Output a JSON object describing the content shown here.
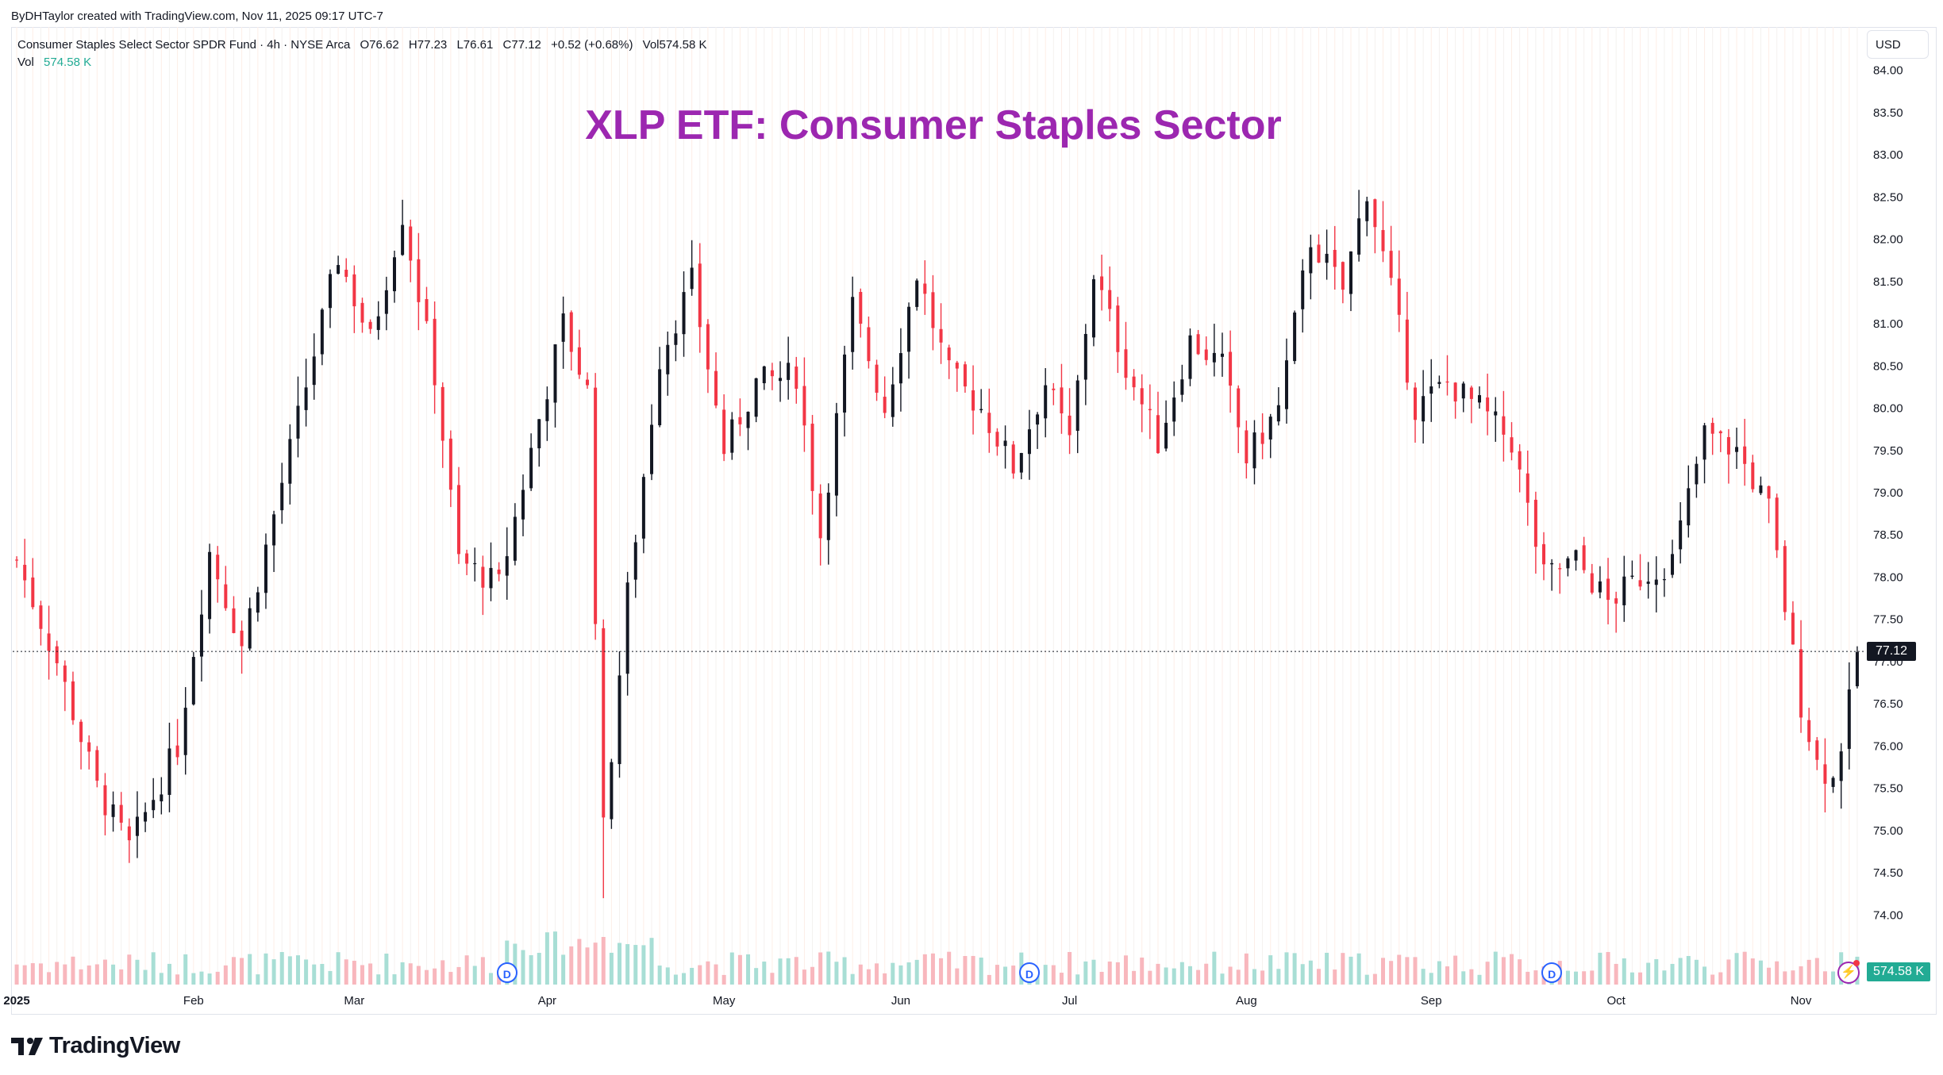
{
  "header": {
    "attribution": "ByDHTaylor created with TradingView.com, Nov 11, 2025 09:17 UTC-7"
  },
  "legend": {
    "symbol": "Consumer Staples Select Sector SPDR Fund · 4h · NYSE Arca",
    "open": "O76.62",
    "high": "H77.23",
    "low": "L76.61",
    "close": "C77.12",
    "change": "+0.52 (+0.68%)",
    "vol_label": "Vol574.58 K",
    "vol2_label": "Vol",
    "vol2_value": "574.58 K"
  },
  "title": "XLP ETF: Consumer Staples Sector",
  "currency": "USD",
  "last_price": "77.12",
  "last_volume": "574.58 K",
  "dividend_marker": "D",
  "footer": {
    "logo_text": "TradingView"
  },
  "colors": {
    "up": "#131722",
    "down": "#f23645",
    "vol_up": "#22ab94",
    "vol_down": "#f23645",
    "accent": "#9c27b0"
  },
  "chart_data": {
    "type": "candlestick",
    "timeframe": "4h",
    "ylim": [
      73.75,
      84.25
    ],
    "y_ticks": [
      "74.00",
      "74.50",
      "75.00",
      "75.50",
      "76.00",
      "76.50",
      "77.00",
      "77.50",
      "78.00",
      "78.50",
      "79.00",
      "79.50",
      "80.00",
      "80.50",
      "81.00",
      "81.50",
      "82.00",
      "82.50",
      "83.00",
      "83.50",
      "84.00"
    ],
    "x_labels": [
      "2025",
      "Feb",
      "Mar",
      "Apr",
      "May",
      "Jun",
      "Jul",
      "Aug",
      "Sep",
      "Oct",
      "Nov"
    ],
    "x_label_index": [
      0,
      22,
      42,
      66,
      88,
      110,
      131,
      153,
      176,
      199,
      222
    ],
    "dividend_index": [
      61,
      126,
      191
    ],
    "bars_total": 230,
    "anchors": [
      {
        "i": 0,
        "p": 78.2
      },
      {
        "i": 5,
        "p": 77.0
      },
      {
        "i": 10,
        "p": 75.5
      },
      {
        "i": 14,
        "p": 74.8
      },
      {
        "i": 20,
        "p": 76.0
      },
      {
        "i": 24,
        "p": 78.3
      },
      {
        "i": 28,
        "p": 77.2
      },
      {
        "i": 34,
        "p": 79.5
      },
      {
        "i": 40,
        "p": 81.8
      },
      {
        "i": 44,
        "p": 80.8
      },
      {
        "i": 48,
        "p": 82.3
      },
      {
        "i": 52,
        "p": 80.4
      },
      {
        "i": 55,
        "p": 78.2
      },
      {
        "i": 60,
        "p": 77.9
      },
      {
        "i": 64,
        "p": 79.5
      },
      {
        "i": 68,
        "p": 81.0
      },
      {
        "i": 71,
        "p": 80.2
      },
      {
        "i": 73,
        "p": 75.0
      },
      {
        "i": 76,
        "p": 77.8
      },
      {
        "i": 80,
        "p": 80.6
      },
      {
        "i": 84,
        "p": 81.5
      },
      {
        "i": 88,
        "p": 79.5
      },
      {
        "i": 92,
        "p": 80.3
      },
      {
        "i": 97,
        "p": 80.4
      },
      {
        "i": 100,
        "p": 78.5
      },
      {
        "i": 104,
        "p": 81.2
      },
      {
        "i": 108,
        "p": 80.0
      },
      {
        "i": 112,
        "p": 81.6
      },
      {
        "i": 116,
        "p": 80.4
      },
      {
        "i": 120,
        "p": 80.0
      },
      {
        "i": 124,
        "p": 79.3
      },
      {
        "i": 128,
        "p": 80.3
      },
      {
        "i": 131,
        "p": 79.6
      },
      {
        "i": 134,
        "p": 81.6
      },
      {
        "i": 138,
        "p": 80.5
      },
      {
        "i": 142,
        "p": 79.6
      },
      {
        "i": 146,
        "p": 80.8
      },
      {
        "i": 150,
        "p": 80.5
      },
      {
        "i": 153,
        "p": 79.4
      },
      {
        "i": 157,
        "p": 80.0
      },
      {
        "i": 161,
        "p": 82.0
      },
      {
        "i": 165,
        "p": 81.4
      },
      {
        "i": 168,
        "p": 82.6
      },
      {
        "i": 171,
        "p": 81.4
      },
      {
        "i": 174,
        "p": 80.0
      },
      {
        "i": 178,
        "p": 80.3
      },
      {
        "i": 182,
        "p": 80.0
      },
      {
        "i": 186,
        "p": 79.6
      },
      {
        "i": 190,
        "p": 78.0
      },
      {
        "i": 194,
        "p": 78.2
      },
      {
        "i": 198,
        "p": 77.7
      },
      {
        "i": 202,
        "p": 78.0
      },
      {
        "i": 206,
        "p": 78.2
      },
      {
        "i": 210,
        "p": 79.7
      },
      {
        "i": 214,
        "p": 79.5
      },
      {
        "i": 218,
        "p": 78.8
      },
      {
        "i": 222,
        "p": 76.5
      },
      {
        "i": 224,
        "p": 75.8
      },
      {
        "i": 226,
        "p": 75.6
      },
      {
        "i": 228,
        "p": 76.5
      },
      {
        "i": 229,
        "p": 77.12
      }
    ]
  }
}
